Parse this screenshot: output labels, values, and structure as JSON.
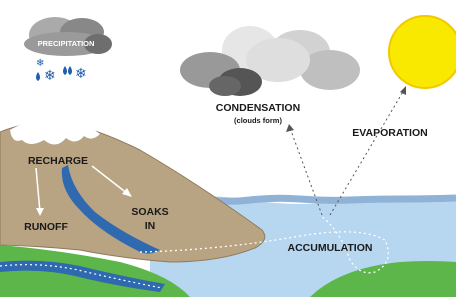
{
  "labels": {
    "precipitation": "PRECIPITATION",
    "condensation": "CONDENSATION",
    "clouds_form": "(clouds form)",
    "evaporation": "EVAPORATION",
    "recharge": "RECHARGE",
    "runoff": "RUNOFF",
    "soaks_in": [
      "SOAKS",
      "IN"
    ],
    "accumulation": "ACCUMULATION"
  }
}
